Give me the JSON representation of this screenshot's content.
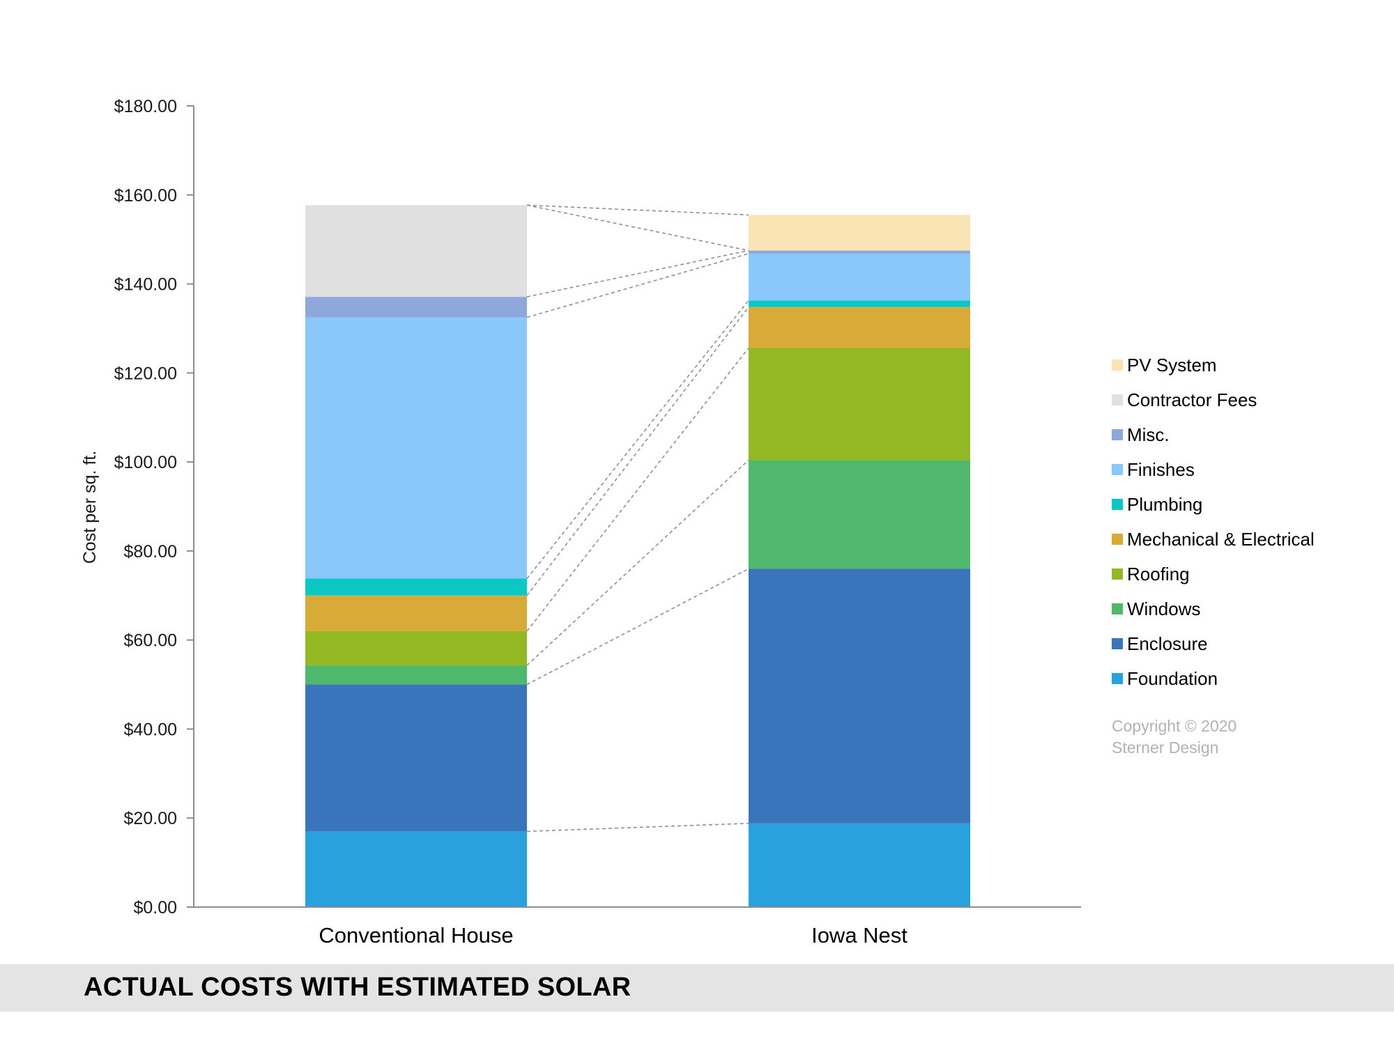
{
  "footer": {
    "title": "ACTUAL COSTS WITH ESTIMATED SOLAR"
  },
  "copyright": {
    "line1": "Copyright © 2020",
    "line2": "Sterner Design"
  },
  "chart_data": {
    "type": "bar",
    "stacked": true,
    "title": "",
    "xlabel": "",
    "ylabel": "Cost per sq. ft.",
    "ylim": [
      0,
      180
    ],
    "yticks": [
      0,
      20,
      40,
      60,
      80,
      100,
      120,
      140,
      160,
      180
    ],
    "ytick_labels": [
      "$0.00",
      "$20.00",
      "$40.00",
      "$60.00",
      "$80.00",
      "$100.00",
      "$120.00",
      "$140.00",
      "$160.00",
      "$180.00"
    ],
    "categories": [
      "Conventional House",
      "Iowa Nest"
    ],
    "legend_position": "right",
    "connector_lines": true,
    "series": [
      {
        "name": "Foundation",
        "color": "#2aa1df",
        "values": [
          17.0,
          18.8
        ]
      },
      {
        "name": "Enclosure",
        "color": "#3a75bb",
        "values": [
          33.0,
          57.2
        ]
      },
      {
        "name": "Windows",
        "color": "#50b86c",
        "values": [
          4.3,
          24.4
        ]
      },
      {
        "name": "Roofing",
        "color": "#92b924",
        "values": [
          7.7,
          25.2
        ]
      },
      {
        "name": "Mechanical & Electrical",
        "color": "#d8aa37",
        "values": [
          8.0,
          9.2
        ]
      },
      {
        "name": "Plumbing",
        "color": "#0cc8c4",
        "values": [
          3.8,
          1.5
        ]
      },
      {
        "name": "Finishes",
        "color": "#8ac8fc",
        "values": [
          58.7,
          10.5
        ]
      },
      {
        "name": "Misc.",
        "color": "#8fa8dc",
        "values": [
          4.6,
          0.7
        ]
      },
      {
        "name": "Contractor Fees",
        "color": "#e0e0e0",
        "values": [
          20.6,
          0
        ]
      },
      {
        "name": "PV System",
        "color": "#fae4b6",
        "values": [
          0,
          8.0
        ]
      }
    ]
  }
}
